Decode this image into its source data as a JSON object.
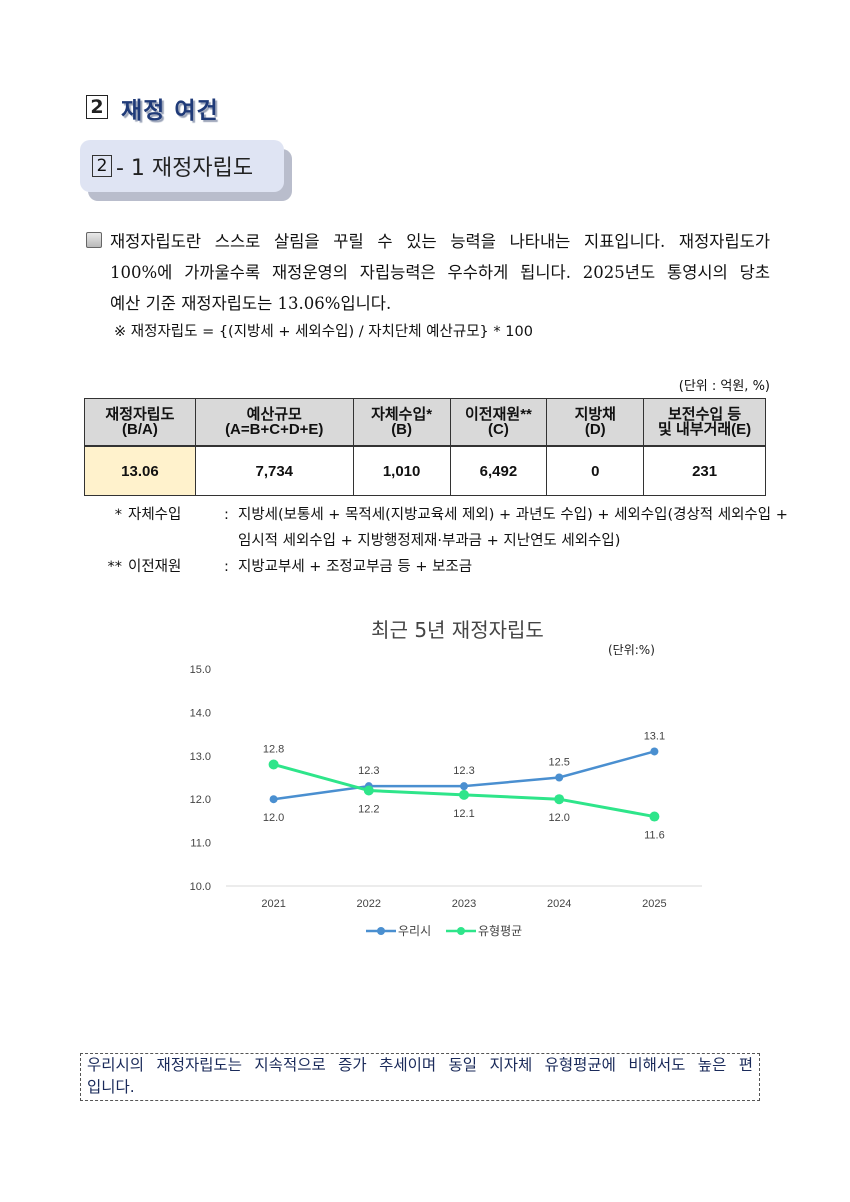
{
  "section": {
    "number": "2",
    "title": "재정 여건"
  },
  "subsection": {
    "number": "2",
    "title": "- 1 재정자립도"
  },
  "paragraph": {
    "lines": [
      "재정자립도란 스스로 살림을 꾸릴 수 있는 능력을 나타내는 지표입니다. 재정자립도가",
      "100%에 가까울수록 재정운영의 자립능력은 우수하게 됩니다. 2025년도 통영시의 당초",
      "예산 기준 재정자립도는 13.06%입니다."
    ],
    "formula": "※ 재정자립도 = {(지방세 + 세외수입) / 자치단체 예산규모} * 100"
  },
  "table": {
    "unit": "(단위 : 억원, %)",
    "headers": [
      {
        "l1": "재정자립도",
        "l2": "(B/A)"
      },
      {
        "l1": "예산규모",
        "l2": "(A=B+C+D+E)"
      },
      {
        "l1": "자체수입*",
        "l2": "(B)"
      },
      {
        "l1": "이전재원**",
        "l2": "(C)"
      },
      {
        "l1": "지방채",
        "l2": "(D)"
      },
      {
        "l1": "보전수입 등",
        "l2": "및 내부거래(E)"
      }
    ],
    "row": [
      "13.06",
      "7,734",
      "1,010",
      "6,492",
      "0",
      "231"
    ]
  },
  "notes": [
    {
      "mark": "*",
      "label": "자체수입",
      "body": "지방세(보통세 + 목적세(지방교육세 제외) + 과년도 수입) + 세외수입(경상적 세외수입 + 임시적 세외수입 + 지방행정제재·부과금 + 지난연도 세외수입)"
    },
    {
      "mark": "**",
      "label": "이전재원",
      "body": "지방교부세 + 조정교부금 등 + 보조금"
    }
  ],
  "chart_data": {
    "type": "line",
    "title": "최근 5년 재정자립도",
    "unit_label": "(단위:%)",
    "x": [
      "2021",
      "2022",
      "2023",
      "2024",
      "2025"
    ],
    "ylim": [
      10.0,
      15.0
    ],
    "yticks": [
      "10.0",
      "11.0",
      "12.0",
      "13.0",
      "14.0",
      "15.0"
    ],
    "grid": false,
    "legend": "bottom",
    "series": [
      {
        "name": "우리시",
        "color": "#4a8fd0",
        "values": [
          12.0,
          12.3,
          12.3,
          12.5,
          13.1
        ]
      },
      {
        "name": "유형평균",
        "color": "#2ee58a",
        "values": [
          12.8,
          12.2,
          12.1,
          12.0,
          11.6
        ]
      }
    ]
  },
  "summary": {
    "lines": [
      "우리시의 재정자립도는 지속적으로 증가 추세이며 동일 지자체 유형평균에 비해서도 높은 편",
      "입니다."
    ]
  }
}
